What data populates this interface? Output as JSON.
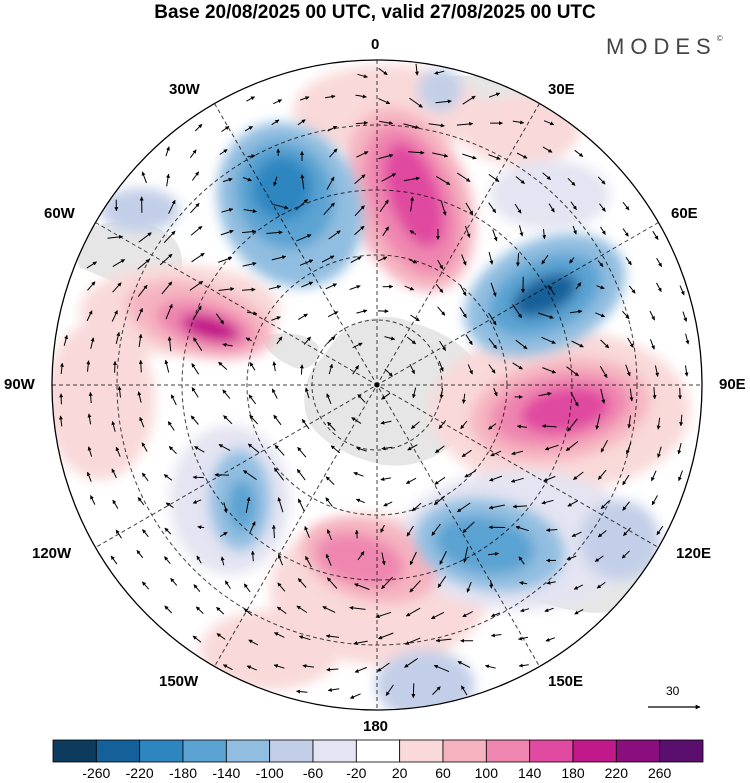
{
  "title": "Base 20/08/2025 00 UTC, valid 27/08/2025 00 UTC",
  "brand": "MODES",
  "brand_mark": "©",
  "longitude_labels": {
    "lon_0": "0",
    "lon_30e": "30E",
    "lon_60e": "60E",
    "lon_90e": "90E",
    "lon_120e": "120E",
    "lon_150e": "150E",
    "lon_180": "180",
    "lon_150w": "150W",
    "lon_120w": "120W",
    "lon_90w": "90W",
    "lon_60w": "60W",
    "lon_30w": "30W"
  },
  "reference_vector": {
    "value": "30",
    "icon": "arrow-icon"
  },
  "colorbar": {
    "ticks": [
      "-260",
      "-220",
      "-180",
      "-140",
      "-100",
      "-60",
      "-20",
      "20",
      "60",
      "100",
      "140",
      "180",
      "220",
      "260"
    ],
    "colors": [
      "#0c3b5e",
      "#14609a",
      "#2e86c1",
      "#5aa3d2",
      "#91bde0",
      "#c3cfe8",
      "#e4e4f2",
      "#ffffff",
      "#f9d9d9",
      "#f5b3c0",
      "#ef86b0",
      "#e04aa0",
      "#c2198a",
      "#8a0e7e",
      "#5a0f6e"
    ]
  },
  "anomaly_centers": [
    {
      "name": "neg-30w",
      "value": -200
    },
    {
      "name": "pos-0",
      "value": 180
    },
    {
      "name": "neg-60e",
      "value": -200
    },
    {
      "name": "pos-90e",
      "value": 180
    },
    {
      "name": "neg-120e",
      "value": -160
    },
    {
      "name": "pos-180",
      "value": 130
    },
    {
      "name": "pos-70w",
      "value": 200
    },
    {
      "name": "neg-110w",
      "value": -120
    },
    {
      "name": "pos-30e",
      "value": 60
    },
    {
      "name": "neg-150e",
      "value": -80
    }
  ]
}
